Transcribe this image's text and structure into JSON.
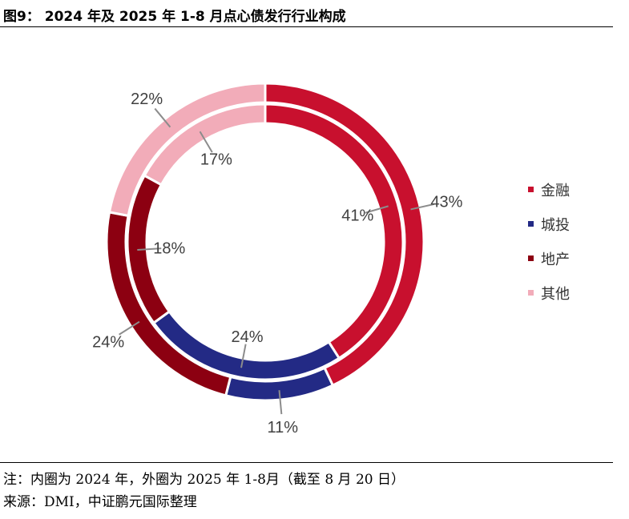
{
  "title": "图9： 2024 年及 2025 年 1-8 月点心债发行行业构成",
  "note": "注：内圈为 2024 年，外圈为 2025 年 1-8月（截至 8 月 20 日）",
  "source": "来源：DMI，中证鹏元国际整理",
  "chart_data": {
    "type": "donut",
    "title": "",
    "legend_position": "right",
    "categories": [
      "金融",
      "城投",
      "地产",
      "其他"
    ],
    "colors": [
      "#c8102e",
      "#232a85",
      "#8c0011",
      "#f2acb9"
    ],
    "series": [
      {
        "ring": "inner",
        "values": [
          41,
          24,
          18,
          17
        ],
        "labels": [
          "41%",
          "24%",
          "18%",
          "17%"
        ]
      },
      {
        "ring": "outer",
        "values": [
          43,
          11,
          24,
          22
        ],
        "labels": [
          "43%",
          "11%",
          "24%",
          "22%"
        ]
      }
    ]
  }
}
